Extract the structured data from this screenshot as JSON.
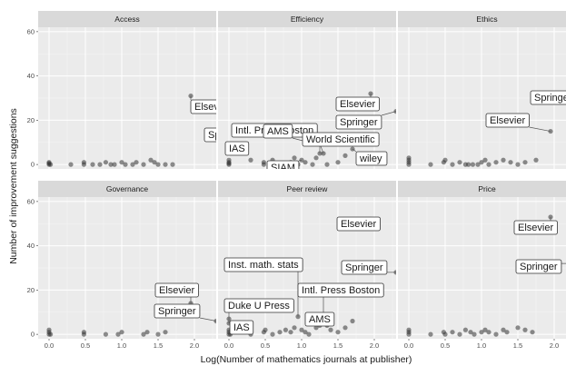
{
  "chart_data": {
    "type": "scatter",
    "xlabel": "Log(Number of mathematics journals at publisher)",
    "ylabel": "Number of improvement suggestions",
    "xlim": [
      -0.15,
      2.3
    ],
    "ylim": [
      -2,
      62
    ],
    "x_ticks": [
      "0.0",
      "0.5",
      "1.0",
      "1.5",
      "2.0"
    ],
    "y_ticks": [
      "0",
      "20",
      "40",
      "60"
    ],
    "grid": true,
    "panels": [
      {
        "title": "Access",
        "points": [
          [
            0,
            0
          ],
          [
            0,
            1
          ],
          [
            0,
            0.5
          ],
          [
            0.02,
            0
          ],
          [
            0.3,
            0
          ],
          [
            0.48,
            0
          ],
          [
            0.48,
            1
          ],
          [
            0.6,
            0
          ],
          [
            0.7,
            0
          ],
          [
            0.78,
            1
          ],
          [
            0.85,
            0
          ],
          [
            0.9,
            0
          ],
          [
            1.0,
            1
          ],
          [
            1.05,
            0
          ],
          [
            1.15,
            0
          ],
          [
            1.2,
            1
          ],
          [
            1.3,
            0
          ],
          [
            1.4,
            2
          ],
          [
            1.45,
            1
          ],
          [
            1.5,
            0
          ],
          [
            1.6,
            0
          ],
          [
            1.7,
            0
          ],
          [
            1.95,
            31
          ],
          [
            2.3,
            12
          ]
        ],
        "labels": [
          {
            "text": "Elsevier",
            "x": 1.95,
            "y": 31
          },
          {
            "text": "Springer",
            "x": 2.3,
            "y": 12
          }
        ]
      },
      {
        "title": "Efficiency",
        "points": [
          [
            0,
            0
          ],
          [
            0,
            1
          ],
          [
            0,
            2
          ],
          [
            0,
            0.5
          ],
          [
            0,
            7
          ],
          [
            0.3,
            2
          ],
          [
            0.48,
            0
          ],
          [
            0.48,
            1
          ],
          [
            0.6,
            2
          ],
          [
            0.7,
            0
          ],
          [
            0.85,
            1
          ],
          [
            0.9,
            3
          ],
          [
            0.95,
            0
          ],
          [
            1.0,
            2
          ],
          [
            1.05,
            1
          ],
          [
            1.1,
            10
          ],
          [
            1.15,
            0
          ],
          [
            1.2,
            3
          ],
          [
            1.25,
            5
          ],
          [
            1.3,
            5
          ],
          [
            1.35,
            0
          ],
          [
            1.5,
            1
          ],
          [
            1.6,
            4
          ],
          [
            1.7,
            7
          ],
          [
            1.95,
            32
          ],
          [
            2.3,
            24
          ]
        ],
        "labels": [
          {
            "text": "Elsevier",
            "x": 1.95,
            "y": 32
          },
          {
            "text": "Springer",
            "x": 2.3,
            "y": 24
          },
          {
            "text": "Intl. Press Boston",
            "x": 1.3,
            "y": 5
          },
          {
            "text": "AMS",
            "x": 1.1,
            "y": 10
          },
          {
            "text": "World Scientific",
            "x": 1.25,
            "y": 5
          },
          {
            "text": "IAS",
            "x": 0,
            "y": 7
          },
          {
            "text": "wiley",
            "x": 1.7,
            "y": 7
          },
          {
            "text": "SIAM",
            "x": 1.0,
            "y": 2
          }
        ]
      },
      {
        "title": "Ethics",
        "points": [
          [
            0,
            0
          ],
          [
            0,
            1
          ],
          [
            0,
            2
          ],
          [
            0,
            3
          ],
          [
            0.3,
            0
          ],
          [
            0.48,
            1
          ],
          [
            0.5,
            2
          ],
          [
            0.6,
            0
          ],
          [
            0.7,
            1
          ],
          [
            0.78,
            0
          ],
          [
            0.82,
            0
          ],
          [
            0.88,
            0
          ],
          [
            0.95,
            0
          ],
          [
            1.0,
            1
          ],
          [
            1.05,
            2
          ],
          [
            1.1,
            0
          ],
          [
            1.2,
            1
          ],
          [
            1.3,
            2
          ],
          [
            1.4,
            1
          ],
          [
            1.5,
            0
          ],
          [
            1.6,
            1
          ],
          [
            1.75,
            2
          ],
          [
            1.95,
            15
          ],
          [
            2.3,
            16
          ]
        ],
        "labels": [
          {
            "text": "Springer",
            "x": 2.3,
            "y": 16
          },
          {
            "text": "Elsevier",
            "x": 1.95,
            "y": 15
          }
        ]
      },
      {
        "title": "Governance",
        "points": [
          [
            0,
            0
          ],
          [
            0,
            1
          ],
          [
            0,
            2
          ],
          [
            0.02,
            0
          ],
          [
            0.48,
            0
          ],
          [
            0.48,
            1
          ],
          [
            0.78,
            0
          ],
          [
            0.95,
            0
          ],
          [
            1.0,
            1
          ],
          [
            1.3,
            0
          ],
          [
            1.35,
            1
          ],
          [
            1.5,
            0
          ],
          [
            1.6,
            1
          ],
          [
            1.95,
            14
          ],
          [
            2.3,
            6
          ]
        ],
        "labels": [
          {
            "text": "Elsevier",
            "x": 1.95,
            "y": 14
          },
          {
            "text": "Springer",
            "x": 2.3,
            "y": 6
          }
        ]
      },
      {
        "title": "Peer review",
        "points": [
          [
            0,
            0
          ],
          [
            0,
            1
          ],
          [
            0,
            2
          ],
          [
            0,
            5
          ],
          [
            0,
            7
          ],
          [
            0.02,
            0
          ],
          [
            0.3,
            0
          ],
          [
            0.48,
            1
          ],
          [
            0.5,
            2
          ],
          [
            0.6,
            0
          ],
          [
            0.7,
            1
          ],
          [
            0.78,
            2
          ],
          [
            0.85,
            1
          ],
          [
            0.9,
            3
          ],
          [
            0.95,
            8
          ],
          [
            1.0,
            2
          ],
          [
            1.05,
            1
          ],
          [
            1.1,
            0
          ],
          [
            1.2,
            3
          ],
          [
            1.25,
            4
          ],
          [
            1.3,
            5
          ],
          [
            1.35,
            4
          ],
          [
            1.4,
            2
          ],
          [
            1.5,
            1
          ],
          [
            1.6,
            3
          ],
          [
            1.7,
            6
          ],
          [
            1.95,
            52
          ],
          [
            2.3,
            28
          ]
        ],
        "labels": [
          {
            "text": "Elsevier",
            "x": 1.95,
            "y": 52
          },
          {
            "text": "Inst. math. stats",
            "x": 0.95,
            "y": 8
          },
          {
            "text": "Springer",
            "x": 2.3,
            "y": 28
          },
          {
            "text": "Intl. Press Boston",
            "x": 1.3,
            "y": 5
          },
          {
            "text": "Duke U Press",
            "x": 0,
            "y": 5
          },
          {
            "text": "AMS",
            "x": 1.25,
            "y": 4
          },
          {
            "text": "IAS",
            "x": 0,
            "y": 2
          }
        ]
      },
      {
        "title": "Price",
        "points": [
          [
            0,
            0
          ],
          [
            0,
            1
          ],
          [
            0,
            2
          ],
          [
            0.3,
            0
          ],
          [
            0.48,
            1
          ],
          [
            0.5,
            0
          ],
          [
            0.6,
            1
          ],
          [
            0.7,
            0
          ],
          [
            0.78,
            2
          ],
          [
            0.85,
            1
          ],
          [
            0.9,
            0
          ],
          [
            1.0,
            1
          ],
          [
            1.05,
            2
          ],
          [
            1.1,
            1
          ],
          [
            1.2,
            0
          ],
          [
            1.3,
            2
          ],
          [
            1.35,
            1
          ],
          [
            1.5,
            3
          ],
          [
            1.6,
            2
          ],
          [
            1.7,
            1
          ],
          [
            1.95,
            53
          ],
          [
            2.3,
            32
          ]
        ],
        "labels": [
          {
            "text": "Elsevier",
            "x": 1.95,
            "y": 53
          },
          {
            "text": "Springer",
            "x": 2.3,
            "y": 32
          }
        ]
      }
    ]
  }
}
